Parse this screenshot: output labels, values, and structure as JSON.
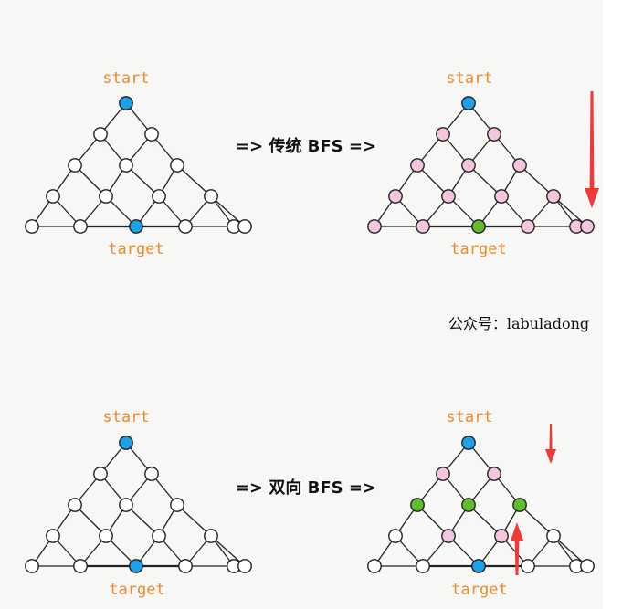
{
  "colors": {
    "paper": "#f7f7f5",
    "edge": "#222222",
    "node_white": "#ffffff",
    "node_blue": "#1ea0e8",
    "node_pink": "#f4c6de",
    "node_green": "#5fbe2a",
    "arrow_red": "#f03a3a",
    "label_orange": "#f08a2a"
  },
  "labels": {
    "start": "start",
    "target": "target",
    "traditional": "=> 传统 BFS =>",
    "bidirectional": "=> 双向 BFS =>",
    "gzh": "公众号：labuladong"
  },
  "panels": [
    {
      "id": "top-left",
      "states": [
        "blue",
        "white",
        "white",
        "white",
        "white",
        "white",
        "white",
        "white",
        "white",
        "white",
        "white",
        "white",
        "white",
        "white",
        "white",
        "blue",
        "white",
        "white"
      ],
      "heavy_edges": []
    },
    {
      "id": "top-right",
      "states": [
        "blue",
        "pink",
        "pink",
        "pink",
        "pink",
        "pink",
        "pink",
        "pink",
        "pink",
        "pink",
        "pink",
        "pink",
        "pink",
        "pink",
        "pink",
        "green",
        "pink",
        "pink"
      ],
      "heavy_edges": []
    },
    {
      "id": "bottom-left",
      "states": [
        "blue",
        "white",
        "white",
        "white",
        "white",
        "white",
        "white",
        "white",
        "white",
        "white",
        "white",
        "white",
        "white",
        "white",
        "white",
        "blue",
        "white",
        "white"
      ],
      "heavy_edges": []
    },
    {
      "id": "bottom-right",
      "states": [
        "blue",
        "pink",
        "pink",
        "green",
        "green",
        "green",
        "white",
        "pink",
        "pink",
        "white",
        "white",
        "white",
        "white",
        "white",
        "white",
        "blue",
        "white",
        "white"
      ],
      "heavy_edges": []
    }
  ],
  "arrows": [
    {
      "id": "top-right-down",
      "direction": "down"
    },
    {
      "id": "bottom-right-down",
      "direction": "down"
    },
    {
      "id": "bottom-right-up",
      "direction": "up"
    }
  ]
}
